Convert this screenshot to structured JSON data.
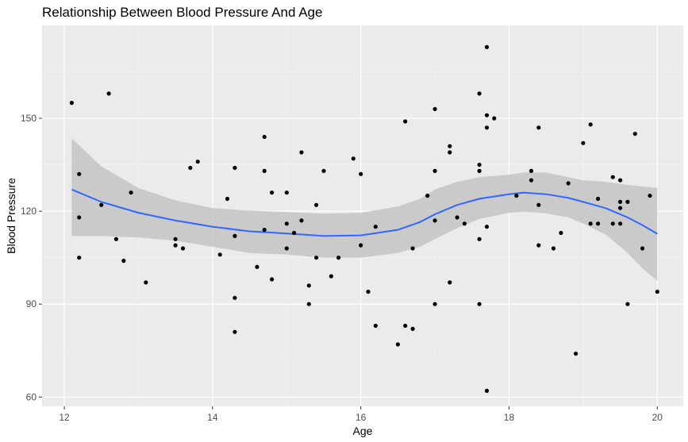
{
  "chart_data": {
    "type": "scatter",
    "title": "Relationship Between Blood Pressure And Age",
    "xlabel": "Age",
    "ylabel": "Blood Pressure",
    "xlim": [
      11.7,
      20.35
    ],
    "ylim": [
      57,
      180
    ],
    "x_ticks": [
      12,
      14,
      16,
      18,
      20
    ],
    "y_ticks": [
      60,
      90,
      120,
      150
    ],
    "grid": true,
    "legend": "none",
    "colors": {
      "panel": "#EBEBEB",
      "grid_major": "#FFFFFF",
      "grid_minor": "#F5F5F5",
      "points": "#000000",
      "smooth_line": "#3366FF",
      "ribbon": "#C4C4C4",
      "axis_text": "#4D4D4D"
    },
    "points": [
      {
        "x": 12.1,
        "y": 155
      },
      {
        "x": 12.2,
        "y": 132
      },
      {
        "x": 12.2,
        "y": 118
      },
      {
        "x": 12.2,
        "y": 105
      },
      {
        "x": 12.5,
        "y": 122
      },
      {
        "x": 12.6,
        "y": 158
      },
      {
        "x": 12.7,
        "y": 111
      },
      {
        "x": 12.8,
        "y": 104
      },
      {
        "x": 12.9,
        "y": 126
      },
      {
        "x": 13.1,
        "y": 97
      },
      {
        "x": 13.6,
        "y": 108
      },
      {
        "x": 13.5,
        "y": 111
      },
      {
        "x": 13.5,
        "y": 109
      },
      {
        "x": 13.7,
        "y": 134
      },
      {
        "x": 13.8,
        "y": 136
      },
      {
        "x": 14.1,
        "y": 106
      },
      {
        "x": 14.2,
        "y": 124
      },
      {
        "x": 14.3,
        "y": 134
      },
      {
        "x": 14.3,
        "y": 112
      },
      {
        "x": 14.3,
        "y": 92
      },
      {
        "x": 14.3,
        "y": 81
      },
      {
        "x": 14.6,
        "y": 102
      },
      {
        "x": 14.7,
        "y": 144
      },
      {
        "x": 14.7,
        "y": 133
      },
      {
        "x": 14.7,
        "y": 114
      },
      {
        "x": 14.8,
        "y": 126
      },
      {
        "x": 14.8,
        "y": 98
      },
      {
        "x": 15.0,
        "y": 126
      },
      {
        "x": 15.0,
        "y": 116
      },
      {
        "x": 15.0,
        "y": 108
      },
      {
        "x": 15.1,
        "y": 113
      },
      {
        "x": 15.2,
        "y": 139
      },
      {
        "x": 15.2,
        "y": 117
      },
      {
        "x": 15.3,
        "y": 96
      },
      {
        "x": 15.3,
        "y": 90
      },
      {
        "x": 15.4,
        "y": 122
      },
      {
        "x": 15.4,
        "y": 105
      },
      {
        "x": 15.5,
        "y": 133
      },
      {
        "x": 15.6,
        "y": 99
      },
      {
        "x": 15.7,
        "y": 105
      },
      {
        "x": 15.9,
        "y": 137
      },
      {
        "x": 16.0,
        "y": 132
      },
      {
        "x": 16.0,
        "y": 109
      },
      {
        "x": 16.1,
        "y": 94
      },
      {
        "x": 16.2,
        "y": 115
      },
      {
        "x": 16.2,
        "y": 83
      },
      {
        "x": 16.5,
        "y": 77
      },
      {
        "x": 16.6,
        "y": 149
      },
      {
        "x": 16.6,
        "y": 83
      },
      {
        "x": 16.7,
        "y": 108
      },
      {
        "x": 16.7,
        "y": 82
      },
      {
        "x": 16.9,
        "y": 125
      },
      {
        "x": 17.0,
        "y": 153
      },
      {
        "x": 17.0,
        "y": 133
      },
      {
        "x": 17.0,
        "y": 117
      },
      {
        "x": 17.0,
        "y": 90
      },
      {
        "x": 17.2,
        "y": 141
      },
      {
        "x": 17.2,
        "y": 139
      },
      {
        "x": 17.2,
        "y": 97
      },
      {
        "x": 17.3,
        "y": 118
      },
      {
        "x": 17.4,
        "y": 116
      },
      {
        "x": 17.6,
        "y": 158
      },
      {
        "x": 17.6,
        "y": 135
      },
      {
        "x": 17.6,
        "y": 133
      },
      {
        "x": 17.6,
        "y": 111
      },
      {
        "x": 17.6,
        "y": 90
      },
      {
        "x": 17.7,
        "y": 173
      },
      {
        "x": 17.7,
        "y": 151
      },
      {
        "x": 17.7,
        "y": 147
      },
      {
        "x": 17.7,
        "y": 115
      },
      {
        "x": 17.7,
        "y": 62
      },
      {
        "x": 17.8,
        "y": 150
      },
      {
        "x": 18.1,
        "y": 125
      },
      {
        "x": 18.3,
        "y": 133
      },
      {
        "x": 18.3,
        "y": 130
      },
      {
        "x": 18.4,
        "y": 147
      },
      {
        "x": 18.4,
        "y": 122
      },
      {
        "x": 18.4,
        "y": 109
      },
      {
        "x": 18.6,
        "y": 108
      },
      {
        "x": 18.7,
        "y": 113
      },
      {
        "x": 18.8,
        "y": 129
      },
      {
        "x": 18.9,
        "y": 74
      },
      {
        "x": 19.0,
        "y": 142
      },
      {
        "x": 19.1,
        "y": 148
      },
      {
        "x": 19.1,
        "y": 116
      },
      {
        "x": 19.2,
        "y": 124
      },
      {
        "x": 19.2,
        "y": 116
      },
      {
        "x": 19.4,
        "y": 131
      },
      {
        "x": 19.4,
        "y": 116
      },
      {
        "x": 19.5,
        "y": 130
      },
      {
        "x": 19.5,
        "y": 123
      },
      {
        "x": 19.5,
        "y": 121
      },
      {
        "x": 19.5,
        "y": 116
      },
      {
        "x": 19.6,
        "y": 123
      },
      {
        "x": 19.6,
        "y": 90
      },
      {
        "x": 19.7,
        "y": 145
      },
      {
        "x": 19.8,
        "y": 108
      },
      {
        "x": 19.9,
        "y": 125
      },
      {
        "x": 20.0,
        "y": 94
      }
    ],
    "smooth": {
      "method": "loess",
      "x": [
        12.1,
        12.5,
        13.0,
        13.5,
        14.0,
        14.5,
        15.0,
        15.5,
        16.0,
        16.5,
        16.8,
        17.0,
        17.3,
        17.6,
        18.0,
        18.2,
        18.5,
        18.8,
        19.0,
        19.3,
        19.6,
        19.8,
        20.0
      ],
      "y": [
        127,
        123,
        119.5,
        117,
        115,
        113.5,
        112.8,
        112,
        112.2,
        114,
        116.5,
        119,
        122,
        124,
        125.5,
        126,
        125.5,
        124.3,
        123,
        121,
        118,
        115.5,
        112.7
      ],
      "lower": [
        112,
        112,
        111.5,
        110.5,
        108.5,
        106.5,
        106,
        105,
        105,
        106.5,
        108.5,
        111,
        114.5,
        117.5,
        119.5,
        119.8,
        119.3,
        118,
        116,
        112.5,
        106.5,
        101.5,
        97.5
      ],
      "upper": [
        143.5,
        134.5,
        127.5,
        123.5,
        121,
        120.2,
        119.7,
        119.2,
        119.5,
        121.5,
        124,
        127,
        129.5,
        131,
        131.8,
        132.5,
        132.5,
        131,
        130,
        129.5,
        128.5,
        128,
        127.5
      ]
    }
  }
}
